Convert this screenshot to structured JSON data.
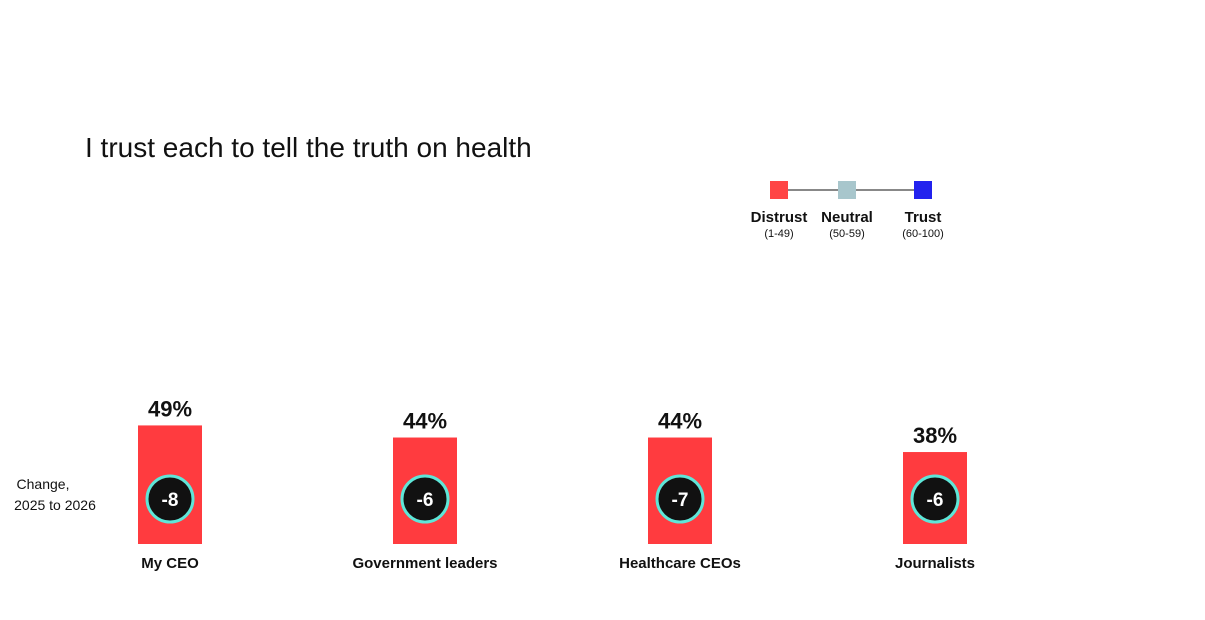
{
  "chart_data": {
    "type": "bar",
    "title": "I trust each to tell the truth on health",
    "categories": [
      "My CEO",
      "Government leaders",
      "Healthcare CEOs",
      "Journalists"
    ],
    "values": [
      49,
      44,
      44,
      38
    ],
    "value_labels": [
      "49%",
      "44%",
      "44%",
      "38%"
    ],
    "changes": [
      -8,
      -6,
      -7,
      -6
    ],
    "change_labels": [
      "-8",
      "-6",
      "-7",
      "-6"
    ],
    "change_label": [
      "Change,",
      "2025 to 2026"
    ],
    "ylim": [
      0,
      100
    ],
    "grid": false,
    "legend": {
      "placement": "top-right",
      "items": [
        {
          "label": "Distrust",
          "range": "(1-49)",
          "color": "#ff4545"
        },
        {
          "label": "Neutral",
          "range": "(50-59)",
          "color": "#a8c6cc"
        },
        {
          "label": "Trust",
          "range": "(60-100)",
          "color": "#2222ee"
        }
      ]
    },
    "colors": {
      "bar": "#ff3b3f",
      "circle": "#111111",
      "circle_ring": "#5ee6d8"
    }
  }
}
